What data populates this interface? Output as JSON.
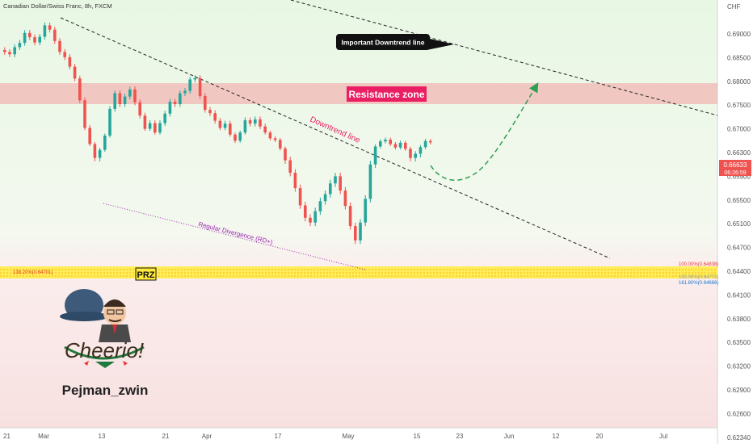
{
  "header": {
    "symbol_title": "Canadian Dollar/Swiss Franc, 8h, FXCM",
    "currency": "CHF"
  },
  "price_tag": {
    "price": "0.66633",
    "countdown": "06:26:59"
  },
  "annotations": {
    "important_downtrend": "Important Downtrend line",
    "resistance_zone": "Resistance zone",
    "downtrend_line": "Downtrend line",
    "regular_divergence": "Regular Divergence (RD+)",
    "prz": "PRZ",
    "fib_left": "138.20%(0.64701)",
    "fib_100": "100.00%(0.64838)",
    "fib_mid": "100.00%(0.64772)",
    "fib_161": "161.80%(0.64666)"
  },
  "logo": {
    "wordmark": "Cheerio!",
    "author": "Pejman_zwin"
  },
  "colors": {
    "up": "#26a69a",
    "down": "#ef5350",
    "resistance": "#f4a0a0",
    "resistance_label_bg": "#e91e63",
    "prz": "#ffeb3b",
    "divergence": "#9c27b0",
    "forecast": "#2e9e4f",
    "price_tag": "#ef5350"
  },
  "chart_data": {
    "type": "candlestick",
    "symbol": "CADCHF",
    "timeframe": "8h",
    "y_axis_ticks": [
      "0.69000",
      "0.68500",
      "0.68000",
      "0.67500",
      "0.67000",
      "0.66300",
      "0.65900",
      "0.65500",
      "0.65100",
      "0.64700",
      "0.64400",
      "0.64100",
      "0.63800",
      "0.63500",
      "0.63200",
      "0.62900",
      "0.62600",
      "0.62340"
    ],
    "x_axis_ticks": [
      "21",
      "Mar",
      "13",
      "21",
      "Apr",
      "17",
      "May",
      "15",
      "23",
      "Jun",
      "12",
      "20",
      "Jul"
    ],
    "closes": [
      0.6862,
      0.6857,
      0.6872,
      0.6881,
      0.6902,
      0.6893,
      0.6882,
      0.6894,
      0.6918,
      0.6909,
      0.6885,
      0.6862,
      0.6851,
      0.6831,
      0.6806,
      0.676,
      0.6702,
      0.6655,
      0.6621,
      0.6638,
      0.668,
      0.6742,
      0.6775,
      0.6752,
      0.6768,
      0.6783,
      0.6756,
      0.6728,
      0.67,
      0.6712,
      0.6689,
      0.6712,
      0.6732,
      0.6757,
      0.6752,
      0.6775,
      0.678,
      0.6804,
      0.6807,
      0.6769,
      0.674,
      0.6733,
      0.6717,
      0.6702,
      0.6711,
      0.6683,
      0.6665,
      0.6689,
      0.6718,
      0.6711,
      0.672,
      0.6705,
      0.6689,
      0.6672,
      0.6667,
      0.6642,
      0.6617,
      0.6596,
      0.657,
      0.6541,
      0.652,
      0.6512,
      0.6531,
      0.6548,
      0.656,
      0.6578,
      0.659,
      0.6566,
      0.654,
      0.6506,
      0.6482,
      0.6512,
      0.6552,
      0.661,
      0.6648,
      0.6663,
      0.6668,
      0.6655,
      0.6645,
      0.6659,
      0.6641,
      0.6621,
      0.6628,
      0.6646,
      0.6664,
      0.666
    ],
    "levels": {
      "resistance_zone": [
        0.677,
        0.6808
      ],
      "prz": [
        0.6466,
        0.6484
      ],
      "fib_138_2": 0.64701,
      "fib_100": 0.64838,
      "fib_100_b": 0.64772,
      "fib_161_8": 0.64666,
      "last_price": 0.66633
    }
  }
}
